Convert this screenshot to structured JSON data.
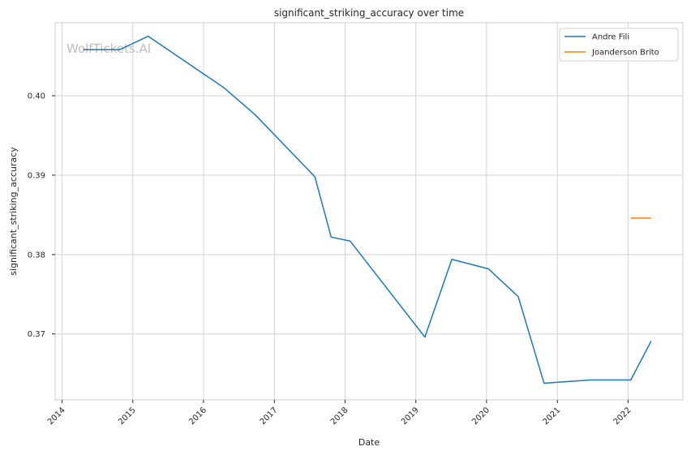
{
  "chart_data": {
    "type": "line",
    "title": "significant_striking_accuracy over time",
    "xlabel": "Date",
    "ylabel": "significant_striking_accuracy",
    "watermark": "WolfTickets.AI",
    "x_ticks": [
      "2014",
      "2015",
      "2016",
      "2017",
      "2018",
      "2019",
      "2020",
      "2021",
      "2022"
    ],
    "y_ticks": [
      "0.37",
      "0.38",
      "0.39",
      "0.40"
    ],
    "xlim": [
      "2013-11-26",
      "2022-10-11"
    ],
    "ylim": [
      0.3617,
      0.4092
    ],
    "grid": true,
    "legend_position": "top-right",
    "series": [
      {
        "name": "Andre Fili",
        "color": "#1f77b4",
        "points": [
          [
            "2014-04-19",
            0.4058
          ],
          [
            "2014-10-25",
            0.4058
          ],
          [
            "2015-03-21",
            0.4075
          ],
          [
            "2016-04-16",
            0.401
          ],
          [
            "2016-09-24",
            0.3976
          ],
          [
            "2017-07-29",
            0.3898
          ],
          [
            "2017-10-21",
            0.3822
          ],
          [
            "2018-01-27",
            0.3817
          ],
          [
            "2019-02-17",
            0.3696
          ],
          [
            "2019-07-06",
            0.3794
          ],
          [
            "2020-01-11",
            0.3782
          ],
          [
            "2020-06-13",
            0.3747
          ],
          [
            "2020-10-24",
            0.3638
          ],
          [
            "2021-06-19",
            0.3642
          ],
          [
            "2022-01-15",
            0.3642
          ],
          [
            "2022-04-30",
            0.3691
          ]
        ]
      },
      {
        "name": "Joanderson Brito",
        "color": "#ff7f0e",
        "points": [
          [
            "2022-01-15",
            0.3846
          ],
          [
            "2022-04-30",
            0.3846
          ]
        ]
      }
    ]
  }
}
